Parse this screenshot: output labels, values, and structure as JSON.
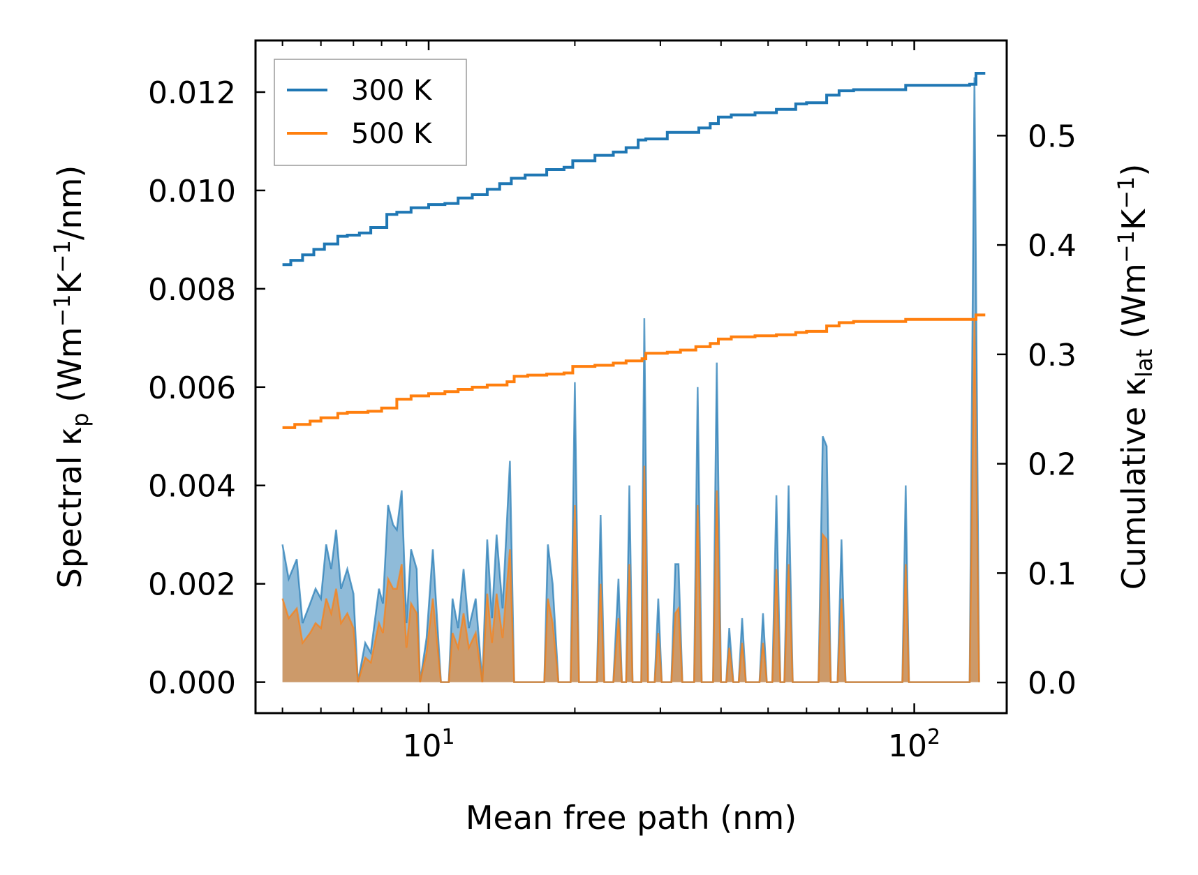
{
  "chart_data": {
    "type": "line",
    "xscale": "log",
    "xlabel": "Mean free path (nm)",
    "xlim": [
      4.4,
      155
    ],
    "x_ticks": [
      {
        "value": 10,
        "base": "10",
        "exp": "1"
      },
      {
        "value": 100,
        "base": "10",
        "exp": "2"
      }
    ],
    "y_left": {
      "label_prefix": "Spectral κ",
      "label_sub": "p",
      "label_units_parts": [
        " (Wm",
        "−1",
        "K",
        "−1",
        "/nm)"
      ],
      "lim": [
        -0.00063,
        0.01305
      ],
      "ticks": [
        0.0,
        0.002,
        0.004,
        0.006,
        0.008,
        0.01,
        0.012
      ],
      "tick_labels": [
        "0.000",
        "0.002",
        "0.004",
        "0.006",
        "0.008",
        "0.010",
        "0.012"
      ]
    },
    "y_right": {
      "label_prefix": "Cumulative κ",
      "label_sub": "lat",
      "label_units_parts": [
        " (Wm",
        "−1",
        "K",
        "−1",
        ")"
      ],
      "lim": [
        -0.028,
        0.587
      ],
      "ticks": [
        0.0,
        0.1,
        0.2,
        0.3,
        0.4,
        0.5
      ],
      "tick_labels": [
        "0.0",
        "0.1",
        "0.2",
        "0.3",
        "0.4",
        "0.5"
      ]
    },
    "legend": {
      "position": "top-left",
      "entries": [
        {
          "label": "300 K",
          "color": "#1f77b4"
        },
        {
          "label": "500 K",
          "color": "#ff7f0e"
        }
      ]
    },
    "series": [
      {
        "name": "300 K",
        "color": "#1f77b4",
        "fill_color": "#1f77b4",
        "cumulative": [
          [
            5.0,
            0.382
          ],
          [
            5.2,
            0.386
          ],
          [
            5.5,
            0.391
          ],
          [
            5.8,
            0.396
          ],
          [
            6.1,
            0.401
          ],
          [
            6.5,
            0.408
          ],
          [
            6.8,
            0.409
          ],
          [
            7.2,
            0.411
          ],
          [
            7.6,
            0.416
          ],
          [
            8.2,
            0.428
          ],
          [
            8.6,
            0.43
          ],
          [
            9.2,
            0.434
          ],
          [
            10.0,
            0.437
          ],
          [
            10.8,
            0.438
          ],
          [
            11.5,
            0.443
          ],
          [
            12.3,
            0.446
          ],
          [
            13.2,
            0.451
          ],
          [
            14.0,
            0.456
          ],
          [
            14.8,
            0.461
          ],
          [
            15.8,
            0.464
          ],
          [
            17.5,
            0.469
          ],
          [
            19.0,
            0.471
          ],
          [
            19.8,
            0.477
          ],
          [
            22.0,
            0.482
          ],
          [
            24.0,
            0.485
          ],
          [
            25.5,
            0.489
          ],
          [
            27.0,
            0.496
          ],
          [
            28.0,
            0.497
          ],
          [
            31.0,
            0.503
          ],
          [
            33.0,
            0.503
          ],
          [
            36.0,
            0.507
          ],
          [
            38.0,
            0.511
          ],
          [
            39.5,
            0.517
          ],
          [
            42.0,
            0.519
          ],
          [
            47.0,
            0.521
          ],
          [
            52.0,
            0.524
          ],
          [
            57.0,
            0.529
          ],
          [
            60.0,
            0.53
          ],
          [
            66.0,
            0.537
          ],
          [
            70.0,
            0.541
          ],
          [
            75.0,
            0.542
          ],
          [
            96.0,
            0.546
          ],
          [
            130.0,
            0.547
          ],
          [
            134.0,
            0.557
          ],
          [
            140.0,
            0.557
          ]
        ],
        "spectral": [
          [
            5.0,
            0.0028
          ],
          [
            5.15,
            0.0021
          ],
          [
            5.35,
            0.0025
          ],
          [
            5.5,
            0.0012
          ],
          [
            5.7,
            0.0016
          ],
          [
            5.85,
            0.0019
          ],
          [
            6.0,
            0.0017
          ],
          [
            6.15,
            0.0028
          ],
          [
            6.3,
            0.0023
          ],
          [
            6.45,
            0.0031
          ],
          [
            6.6,
            0.0019
          ],
          [
            6.8,
            0.0023
          ],
          [
            7.0,
            0.0018
          ],
          [
            7.15,
            0.0
          ],
          [
            7.4,
            0.0008
          ],
          [
            7.6,
            0.0006
          ],
          [
            7.9,
            0.0019
          ],
          [
            8.05,
            0.0016
          ],
          [
            8.25,
            0.0036
          ],
          [
            8.45,
            0.0032
          ],
          [
            8.6,
            0.0031
          ],
          [
            8.8,
            0.0039
          ],
          [
            9.0,
            0.0012
          ],
          [
            9.2,
            0.0027
          ],
          [
            9.45,
            0.0023
          ],
          [
            9.6,
            0.0
          ],
          [
            9.9,
            0.0009
          ],
          [
            10.2,
            0.0027
          ],
          [
            10.6,
            0.0
          ],
          [
            11.0,
            0.0
          ],
          [
            11.2,
            0.0017
          ],
          [
            11.5,
            0.0011
          ],
          [
            11.8,
            0.0023
          ],
          [
            12.1,
            0.0011
          ],
          [
            12.5,
            0.0017
          ],
          [
            12.9,
            0.0
          ],
          [
            13.2,
            0.0029
          ],
          [
            13.5,
            0.0013
          ],
          [
            13.8,
            0.003
          ],
          [
            14.2,
            0.0015
          ],
          [
            14.7,
            0.0045
          ],
          [
            15.0,
            0.0
          ],
          [
            15.6,
            0.0
          ],
          [
            16.2,
            0.0
          ],
          [
            17.3,
            0.0
          ],
          [
            17.6,
            0.0028
          ],
          [
            18.0,
            0.002
          ],
          [
            18.5,
            0.0
          ],
          [
            19.6,
            0.0
          ],
          [
            20.0,
            0.0061
          ],
          [
            20.4,
            0.0
          ],
          [
            22.2,
            0.0
          ],
          [
            22.6,
            0.0034
          ],
          [
            23.0,
            0.0
          ],
          [
            24.0,
            0.0
          ],
          [
            24.6,
            0.0021
          ],
          [
            25.0,
            0.0
          ],
          [
            25.5,
            0.0
          ],
          [
            25.9,
            0.004
          ],
          [
            26.3,
            0.0
          ],
          [
            27.4,
            0.0
          ],
          [
            27.8,
            0.0074
          ],
          [
            28.3,
            0.0
          ],
          [
            29.2,
            0.0
          ],
          [
            29.7,
            0.0017
          ],
          [
            30.2,
            0.0
          ],
          [
            31.6,
            0.0
          ],
          [
            32.2,
            0.0024
          ],
          [
            32.7,
            0.0024
          ],
          [
            33.3,
            0.0
          ],
          [
            35.2,
            0.0
          ],
          [
            35.8,
            0.006
          ],
          [
            36.5,
            0.0
          ],
          [
            38.5,
            0.0
          ],
          [
            39.2,
            0.0065
          ],
          [
            40.0,
            0.0
          ],
          [
            41.0,
            0.0
          ],
          [
            41.6,
            0.0011
          ],
          [
            42.4,
            0.0
          ],
          [
            43.5,
            0.0
          ],
          [
            44.2,
            0.0013
          ],
          [
            45.0,
            0.0
          ],
          [
            48.0,
            0.0
          ],
          [
            48.8,
            0.0014
          ],
          [
            49.7,
            0.0
          ],
          [
            51.0,
            0.0
          ],
          [
            52.0,
            0.0038
          ],
          [
            53.0,
            0.0
          ],
          [
            54.0,
            0.0
          ],
          [
            55.1,
            0.004
          ],
          [
            56.2,
            0.0
          ],
          [
            63.5,
            0.0
          ],
          [
            64.8,
            0.005
          ],
          [
            66.0,
            0.0048
          ],
          [
            67.3,
            0.0
          ],
          [
            69.5,
            0.0
          ],
          [
            70.8,
            0.0029
          ],
          [
            72.2,
            0.0
          ],
          [
            94.5,
            0.0
          ],
          [
            96.0,
            0.004
          ],
          [
            97.5,
            0.0
          ],
          [
            130.0,
            0.0
          ],
          [
            133.0,
            0.0123
          ],
          [
            136.0,
            0.0
          ]
        ]
      },
      {
        "name": "500 K",
        "color": "#ff7f0e",
        "fill_color": "#ff7f0e",
        "cumulative": [
          [
            5.0,
            0.233
          ],
          [
            5.3,
            0.236
          ],
          [
            5.7,
            0.239
          ],
          [
            6.0,
            0.242
          ],
          [
            6.5,
            0.246
          ],
          [
            6.8,
            0.247
          ],
          [
            7.5,
            0.248
          ],
          [
            8.0,
            0.251
          ],
          [
            8.6,
            0.259
          ],
          [
            9.2,
            0.262
          ],
          [
            10.0,
            0.264
          ],
          [
            10.8,
            0.266
          ],
          [
            11.5,
            0.268
          ],
          [
            12.3,
            0.27
          ],
          [
            13.2,
            0.272
          ],
          [
            14.5,
            0.275
          ],
          [
            15.0,
            0.28
          ],
          [
            16.0,
            0.281
          ],
          [
            17.5,
            0.282
          ],
          [
            19.0,
            0.283
          ],
          [
            19.8,
            0.289
          ],
          [
            22.0,
            0.29
          ],
          [
            24.0,
            0.292
          ],
          [
            25.5,
            0.294
          ],
          [
            27.5,
            0.296
          ],
          [
            28.0,
            0.301
          ],
          [
            31.0,
            0.302
          ],
          [
            33.0,
            0.304
          ],
          [
            35.5,
            0.307
          ],
          [
            38.0,
            0.31
          ],
          [
            39.5,
            0.314
          ],
          [
            42.0,
            0.316
          ],
          [
            47.0,
            0.317
          ],
          [
            52.0,
            0.318
          ],
          [
            57.0,
            0.32
          ],
          [
            60.0,
            0.321
          ],
          [
            66.0,
            0.326
          ],
          [
            70.0,
            0.329
          ],
          [
            75.0,
            0.33
          ],
          [
            96.0,
            0.332
          ],
          [
            130.0,
            0.332
          ],
          [
            134.0,
            0.336
          ],
          [
            140.0,
            0.336
          ]
        ],
        "spectral": [
          [
            5.0,
            0.0017
          ],
          [
            5.15,
            0.0013
          ],
          [
            5.35,
            0.0015
          ],
          [
            5.5,
            0.0008
          ],
          [
            5.7,
            0.001
          ],
          [
            5.85,
            0.0012
          ],
          [
            6.0,
            0.0011
          ],
          [
            6.15,
            0.0017
          ],
          [
            6.3,
            0.0014
          ],
          [
            6.45,
            0.0019
          ],
          [
            6.6,
            0.0012
          ],
          [
            6.8,
            0.0014
          ],
          [
            7.0,
            0.0011
          ],
          [
            7.15,
            0.0
          ],
          [
            7.4,
            0.0005
          ],
          [
            7.6,
            0.0004
          ],
          [
            7.9,
            0.0012
          ],
          [
            8.05,
            0.001
          ],
          [
            8.25,
            0.0021
          ],
          [
            8.45,
            0.0019
          ],
          [
            8.6,
            0.0019
          ],
          [
            8.8,
            0.0024
          ],
          [
            9.0,
            0.0007
          ],
          [
            9.2,
            0.0016
          ],
          [
            9.45,
            0.0014
          ],
          [
            9.6,
            0.0
          ],
          [
            9.9,
            0.0006
          ],
          [
            10.2,
            0.0017
          ],
          [
            10.6,
            0.0
          ],
          [
            11.0,
            0.0
          ],
          [
            11.2,
            0.001
          ],
          [
            11.5,
            0.0007
          ],
          [
            11.8,
            0.0014
          ],
          [
            12.1,
            0.0007
          ],
          [
            12.5,
            0.001
          ],
          [
            12.9,
            0.0
          ],
          [
            13.2,
            0.0018
          ],
          [
            13.5,
            0.0008
          ],
          [
            13.8,
            0.0018
          ],
          [
            14.2,
            0.0009
          ],
          [
            14.7,
            0.0027
          ],
          [
            15.0,
            0.0
          ],
          [
            15.6,
            0.0
          ],
          [
            16.2,
            0.0
          ],
          [
            17.3,
            0.0
          ],
          [
            17.6,
            0.0017
          ],
          [
            18.0,
            0.0012
          ],
          [
            18.5,
            0.0
          ],
          [
            19.6,
            0.0
          ],
          [
            20.0,
            0.0036
          ],
          [
            20.4,
            0.0
          ],
          [
            22.2,
            0.0
          ],
          [
            22.6,
            0.002
          ],
          [
            23.0,
            0.0
          ],
          [
            24.0,
            0.0
          ],
          [
            24.6,
            0.0013
          ],
          [
            25.0,
            0.0
          ],
          [
            25.5,
            0.0
          ],
          [
            25.9,
            0.0024
          ],
          [
            26.3,
            0.0
          ],
          [
            27.4,
            0.0
          ],
          [
            27.8,
            0.0044
          ],
          [
            28.3,
            0.0
          ],
          [
            29.2,
            0.0
          ],
          [
            29.7,
            0.001
          ],
          [
            30.2,
            0.0
          ],
          [
            31.6,
            0.0
          ],
          [
            32.2,
            0.0014
          ],
          [
            32.7,
            0.0015
          ],
          [
            33.3,
            0.0
          ],
          [
            35.2,
            0.0
          ],
          [
            35.8,
            0.0036
          ],
          [
            36.5,
            0.0
          ],
          [
            38.5,
            0.0
          ],
          [
            39.2,
            0.0039
          ],
          [
            40.0,
            0.0
          ],
          [
            41.0,
            0.0
          ],
          [
            41.6,
            0.0007
          ],
          [
            42.4,
            0.0
          ],
          [
            43.5,
            0.0
          ],
          [
            44.2,
            0.0008
          ],
          [
            45.0,
            0.0
          ],
          [
            48.0,
            0.0
          ],
          [
            48.8,
            0.0008
          ],
          [
            49.7,
            0.0
          ],
          [
            51.0,
            0.0
          ],
          [
            52.0,
            0.0023
          ],
          [
            53.0,
            0.0
          ],
          [
            54.0,
            0.0
          ],
          [
            55.1,
            0.0024
          ],
          [
            56.2,
            0.0
          ],
          [
            63.5,
            0.0
          ],
          [
            64.8,
            0.003
          ],
          [
            66.0,
            0.0029
          ],
          [
            67.3,
            0.0
          ],
          [
            69.5,
            0.0
          ],
          [
            70.8,
            0.0017
          ],
          [
            72.2,
            0.0
          ],
          [
            94.5,
            0.0
          ],
          [
            96.0,
            0.0024
          ],
          [
            97.5,
            0.0
          ],
          [
            130.0,
            0.0
          ],
          [
            133.0,
            0.0074
          ],
          [
            136.0,
            0.0
          ]
        ]
      }
    ]
  }
}
